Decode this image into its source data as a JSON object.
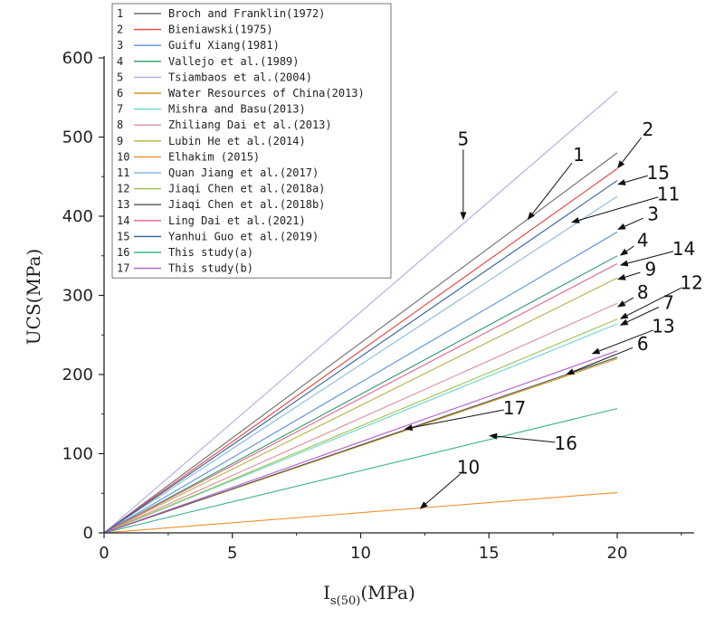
{
  "chart_data": {
    "type": "line",
    "title": "",
    "xlabel_main": "I",
    "xlabel_sub": "s(50)",
    "xlabel_unit": "(MPa)",
    "ylabel": "UCS(MPa)",
    "xlim": [
      0,
      23
    ],
    "ylim": [
      0,
      600
    ],
    "xticks": [
      "0",
      "5",
      "10",
      "15",
      "20"
    ],
    "yticks": [
      "0",
      "100",
      "200",
      "300",
      "400",
      "500",
      "600"
    ],
    "legend_position": "top-left",
    "series": [
      {
        "id": "1",
        "name": "Broch and Franklin(1972)",
        "color": "#6e6e6e",
        "x": [
          0,
          20
        ],
        "y": [
          0,
          480
        ]
      },
      {
        "id": "2",
        "name": "Bieniawski(1975)",
        "color": "#e8403f",
        "x": [
          0,
          20
        ],
        "y": [
          0,
          460
        ]
      },
      {
        "id": "3",
        "name": "Guifu Xiang(1981)",
        "color": "#5b8fd6",
        "x": [
          0,
          20
        ],
        "y": [
          0,
          380
        ]
      },
      {
        "id": "4",
        "name": "Vallejo et al.(1989)",
        "color": "#2e9a62",
        "x": [
          0,
          20
        ],
        "y": [
          0,
          350
        ]
      },
      {
        "id": "5",
        "name": "Tsiambaos et al.(2004)",
        "color": "#b7a8e0",
        "x": [
          0,
          20
        ],
        "y": [
          0,
          558
        ]
      },
      {
        "id": "6",
        "name": "Water Resources of China(2013)",
        "color": "#c99a18",
        "x": [
          0,
          20
        ],
        "y": [
          0,
          220
        ]
      },
      {
        "id": "7",
        "name": "Mishra and Basu(2013)",
        "color": "#6ad6d0",
        "x": [
          0,
          20
        ],
        "y": [
          0,
          264
        ]
      },
      {
        "id": "8",
        "name": "Zhiliang Dai et al.(2013)",
        "color": "#d98fa0",
        "x": [
          0,
          20
        ],
        "y": [
          0,
          290
        ]
      },
      {
        "id": "9",
        "name": "Lubin He et al.(2014)",
        "color": "#b8b23a",
        "x": [
          0,
          20
        ],
        "y": [
          0,
          322
        ]
      },
      {
        "id": "10",
        "name": "Elhakim (2015)",
        "color": "#f0902a",
        "x": [
          0,
          20
        ],
        "y": [
          0,
          51
        ]
      },
      {
        "id": "11",
        "name": "Quan Jiang et al.(2017)",
        "color": "#8ab8dd",
        "x": [
          0,
          20
        ],
        "y": [
          0,
          425
        ]
      },
      {
        "id": "12",
        "name": "Jiaqi Chen et al.(2018a)",
        "color": "#9bc24a",
        "x": [
          0,
          20
        ],
        "y": [
          0,
          270
        ]
      },
      {
        "id": "13",
        "name": "Jiaqi Chen et al.(2018b)",
        "color": "#555555",
        "x": [
          0,
          20
        ],
        "y": [
          0,
          222
        ]
      },
      {
        "id": "14",
        "name": "Ling Dai et al.(2021)",
        "color": "#e2628c",
        "x": [
          0,
          20
        ],
        "y": [
          0,
          340
        ]
      },
      {
        "id": "15",
        "name": "Yanhui Guo et al.(2019)",
        "color": "#2f5f9c",
        "x": [
          0,
          20
        ],
        "y": [
          0,
          445
        ]
      },
      {
        "id": "16",
        "name": "This study(a)",
        "color": "#3bb389",
        "x": [
          0,
          20
        ],
        "y": [
          0,
          157
        ]
      },
      {
        "id": "17",
        "name": "This study(b)",
        "color": "#b35ad1",
        "x": [
          0,
          20
        ],
        "y": [
          0,
          230
        ]
      }
    ],
    "callouts": [
      {
        "label": "5",
        "tx": 14.0,
        "ty": 490,
        "ax": 14.0,
        "ay": 395
      },
      {
        "label": "1",
        "tx": 18.5,
        "ty": 470,
        "ax": 16.5,
        "ay": 395
      },
      {
        "label": "2",
        "tx": 21.2,
        "ty": 502,
        "ax": 20.0,
        "ay": 460
      },
      {
        "label": "15",
        "tx": 21.6,
        "ty": 447,
        "ax": 20.0,
        "ay": 440
      },
      {
        "label": "11",
        "tx": 22.0,
        "ty": 420,
        "ax": 18.2,
        "ay": 392
      },
      {
        "label": "3",
        "tx": 21.4,
        "ty": 395,
        "ax": 20.0,
        "ay": 383
      },
      {
        "label": "4",
        "tx": 21.0,
        "ty": 362,
        "ax": 20.1,
        "ay": 350
      },
      {
        "label": "14",
        "tx": 22.6,
        "ty": 351,
        "ax": 20.1,
        "ay": 338
      },
      {
        "label": "9",
        "tx": 21.3,
        "ty": 325,
        "ax": 20.0,
        "ay": 320
      },
      {
        "label": "8",
        "tx": 21.0,
        "ty": 296,
        "ax": 20.0,
        "ay": 285
      },
      {
        "label": "12",
        "tx": 22.9,
        "ty": 308,
        "ax": 20.1,
        "ay": 270
      },
      {
        "label": "7",
        "tx": 22.0,
        "ty": 283,
        "ax": 20.1,
        "ay": 262
      },
      {
        "label": "13",
        "tx": 21.8,
        "ty": 253,
        "ax": 19.0,
        "ay": 226
      },
      {
        "label": "6",
        "tx": 21.0,
        "ty": 231,
        "ax": 18.0,
        "ay": 200
      },
      {
        "label": "17",
        "tx": 16.0,
        "ty": 150,
        "ax": 11.7,
        "ay": 131
      },
      {
        "label": "16",
        "tx": 18.0,
        "ty": 105,
        "ax": 15.0,
        "ay": 123
      },
      {
        "label": "10",
        "tx": 14.2,
        "ty": 75,
        "ax": 12.3,
        "ay": 30
      }
    ]
  }
}
